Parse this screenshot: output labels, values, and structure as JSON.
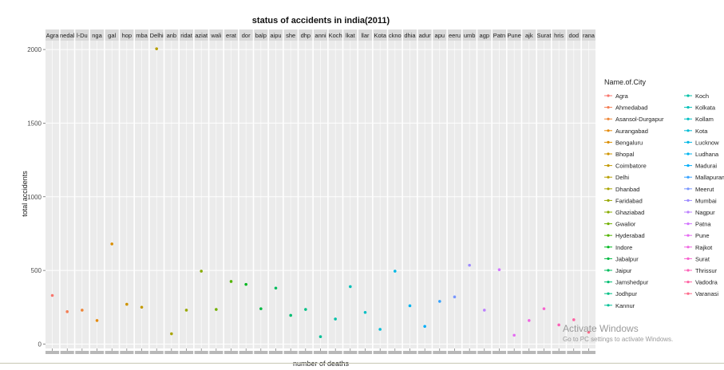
{
  "chart_data": {
    "type": "scatter",
    "title": "status of accidents in india(2011)",
    "xlabel": "number of deaths",
    "ylabel": "total accidents",
    "ylim": [
      -30,
      2060
    ],
    "yticks": [
      0,
      500,
      1000,
      1500,
      2000
    ],
    "legend": {
      "title": "Name.of.City",
      "placement": "right",
      "columns": 2
    },
    "strip_labels": [
      "Agra",
      "nedal",
      "l-Du",
      "nga",
      "gal",
      "hop",
      "mba",
      "Delhi",
      "anb",
      "ridat",
      "aziat",
      "wali",
      "erat",
      "dor",
      "balp",
      "aipu",
      "she",
      "dhp",
      "anni",
      "Koch",
      "lkat",
      "llar",
      "Kota",
      "ckno",
      "dhia",
      "adur",
      "apu",
      "eeru",
      "umb",
      "agp",
      "Patn",
      "Pune",
      "ajk",
      "Surat",
      "hris",
      "dod",
      "rana"
    ],
    "series": [
      {
        "name": "Agra",
        "color": "#F8766D",
        "values": [
          330
        ]
      },
      {
        "name": "Ahmedabad",
        "color": "#F47E55",
        "values": [
          220
        ]
      },
      {
        "name": "Asansol-Durgapur",
        "color": "#EE8536",
        "values": [
          230
        ]
      },
      {
        "name": "Aurangabad",
        "color": "#E58B0B",
        "values": [
          160
        ]
      },
      {
        "name": "Bengaluru",
        "color": "#DB8E00",
        "values": [
          680
        ]
      },
      {
        "name": "Bhopal",
        "color": "#CF9400",
        "values": [
          270
        ]
      },
      {
        "name": "Coimbatore",
        "color": "#C39A00",
        "values": [
          250
        ]
      },
      {
        "name": "Delhi",
        "color": "#B79F00",
        "values": [
          2005
        ]
      },
      {
        "name": "Dhanbad",
        "color": "#A9A400",
        "values": [
          70
        ]
      },
      {
        "name": "Faridabad",
        "color": "#99A800",
        "values": [
          230
        ]
      },
      {
        "name": "Ghaziabad",
        "color": "#88AC00",
        "values": [
          495
        ]
      },
      {
        "name": "Gwalior",
        "color": "#72B000",
        "values": [
          235
        ]
      },
      {
        "name": "Hyderabad",
        "color": "#53B400",
        "values": [
          425
        ]
      },
      {
        "name": "Indore",
        "color": "#00B81F",
        "values": [
          405
        ]
      },
      {
        "name": "Jabalpur",
        "color": "#00BA42",
        "values": [
          240
        ]
      },
      {
        "name": "Jaipur",
        "color": "#00BC5C",
        "values": [
          380
        ]
      },
      {
        "name": "Jamshedpur",
        "color": "#00BE71",
        "values": [
          195
        ]
      },
      {
        "name": "Jodhpur",
        "color": "#00C085",
        "values": [
          235
        ]
      },
      {
        "name": "Kannur",
        "color": "#00C096",
        "values": [
          50
        ]
      },
      {
        "name": "Koch",
        "color": "#00C1A7",
        "values": [
          170
        ]
      },
      {
        "name": "Kolkata",
        "color": "#00C0B8",
        "values": [
          390
        ]
      },
      {
        "name": "Kollam",
        "color": "#00BFC4",
        "values": [
          215
        ]
      },
      {
        "name": "Kota",
        "color": "#00BCD6",
        "values": [
          100
        ]
      },
      {
        "name": "Lucknow",
        "color": "#00B8E5",
        "values": [
          495
        ]
      },
      {
        "name": "Ludhana",
        "color": "#00B4F0",
        "values": [
          260
        ]
      },
      {
        "name": "Madurai",
        "color": "#00AEFA",
        "values": [
          120
        ]
      },
      {
        "name": "Mallapuram",
        "color": "#35A2FF",
        "values": [
          290
        ]
      },
      {
        "name": "Meerut",
        "color": "#7997FF",
        "values": [
          320
        ]
      },
      {
        "name": "Mumbai",
        "color": "#9E8CFF",
        "values": [
          535
        ]
      },
      {
        "name": "Nagpur",
        "color": "#BC81FF",
        "values": [
          230
        ]
      },
      {
        "name": "Patna",
        "color": "#D376FF",
        "values": [
          505
        ]
      },
      {
        "name": "Pune",
        "color": "#E56DF2",
        "values": [
          60
        ]
      },
      {
        "name": "Rajkot",
        "color": "#F066E2",
        "values": [
          160
        ]
      },
      {
        "name": "Surat",
        "color": "#F862CF",
        "values": [
          240
        ]
      },
      {
        "name": "Thrissur",
        "color": "#FC62B8",
        "values": [
          130
        ]
      },
      {
        "name": "Vadodra",
        "color": "#FF64A4",
        "values": [
          165
        ]
      },
      {
        "name": "Varanasi",
        "color": "#FD6C8C",
        "values": [
          80
        ]
      }
    ]
  },
  "watermark": {
    "line1": "Activate Windows",
    "line2": "Go to PC settings to activate Windows."
  }
}
